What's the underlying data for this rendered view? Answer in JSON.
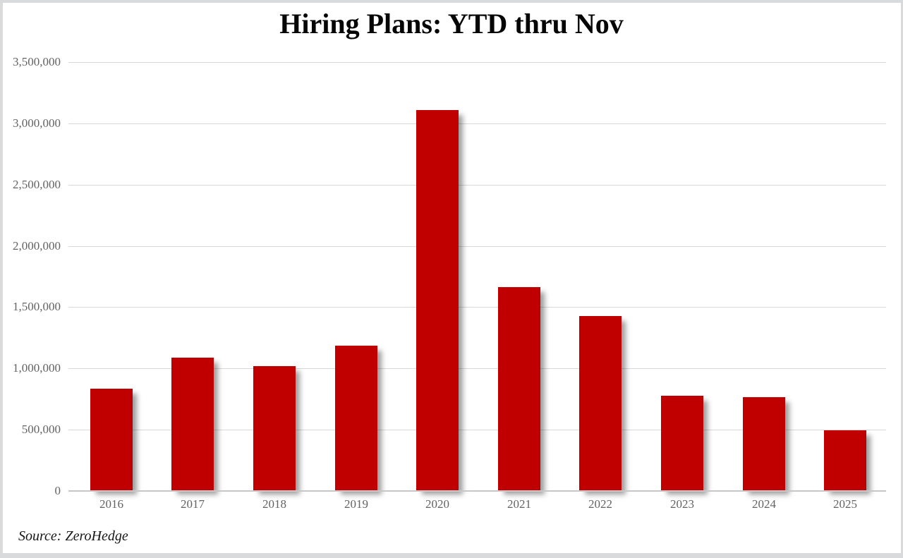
{
  "chart_data": {
    "type": "bar",
    "title": "Hiring Plans: YTD thru Nov",
    "categories": [
      "2016",
      "2017",
      "2018",
      "2019",
      "2020",
      "2021",
      "2022",
      "2023",
      "2024",
      "2025"
    ],
    "values": [
      835000,
      1090000,
      1020000,
      1185000,
      3110000,
      1665000,
      1430000,
      776000,
      763000,
      495000
    ],
    "xlabel": "",
    "ylabel": "",
    "ylim": [
      0,
      3500000
    ],
    "ytick_values": [
      0,
      500000,
      1000000,
      1500000,
      2000000,
      2500000,
      3000000,
      3500000
    ],
    "ytick_labels": [
      "0",
      "500,000",
      "1,000,000",
      "1,500,000",
      "2,000,000",
      "2,500,000",
      "3,000,000",
      "3,500,000"
    ],
    "grid": "horizontal",
    "legend": "none",
    "bar_color": "#C00000"
  },
  "source": {
    "text": "Source: ZeroHedge"
  },
  "colors": {
    "bar": "#C00000",
    "gridline": "#D8D8D8",
    "axis_line": "#C7C7C7",
    "tick_label": "#636363",
    "title": "#060606",
    "frame_border": "#D9DADB",
    "background": "#FFFFFF"
  }
}
